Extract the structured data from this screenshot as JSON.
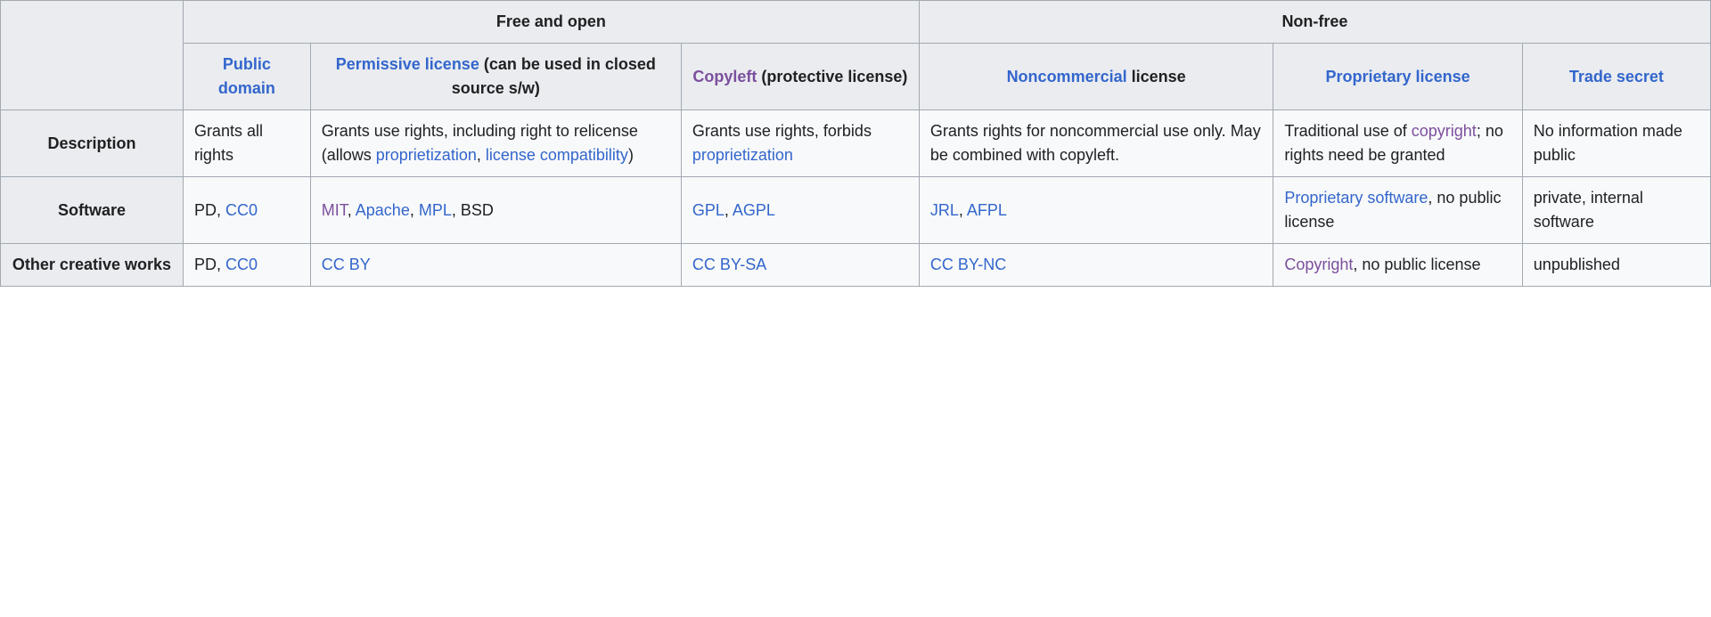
{
  "colors": {
    "link": "#3366cc",
    "link_visited": "#7b4f9d",
    "border": "#a2a9b1",
    "th_bg": "#eaecf0",
    "td_bg": "#f8f9fa",
    "text": "#202122"
  },
  "header_groups": {
    "free": "Free and open",
    "nonfree": "Non-free"
  },
  "columns": {
    "public_domain": {
      "link": "Public domain",
      "suffix": ""
    },
    "permissive": {
      "link": "Permissive license",
      "suffix": " (can be used in closed source s/w)"
    },
    "copyleft": {
      "link": "Copyleft",
      "suffix": " (protective license)"
    },
    "noncommercial": {
      "link": "Noncommercial",
      "suffix": " license"
    },
    "proprietary": {
      "link": "Proprietary license",
      "suffix": ""
    },
    "trade_secret": {
      "link": "Trade secret",
      "suffix": ""
    }
  },
  "rows": {
    "description": {
      "label": "Description",
      "public_domain": [
        {
          "t": "Grants all rights"
        }
      ],
      "permissive": [
        {
          "t": "Grants use rights, including right to relicense (allows "
        },
        {
          "t": "proprietization",
          "link": true
        },
        {
          "t": ", "
        },
        {
          "t": "license compatibility",
          "link": true
        },
        {
          "t": ")"
        }
      ],
      "copyleft": [
        {
          "t": "Grants use rights, forbids "
        },
        {
          "t": "proprietization",
          "link": true
        }
      ],
      "noncommercial": [
        {
          "t": "Grants rights for noncommercial use only. May be combined with copyleft."
        }
      ],
      "proprietary": [
        {
          "t": "Traditional use of "
        },
        {
          "t": "copyright",
          "link": true,
          "visited": true
        },
        {
          "t": "; no rights need be granted"
        }
      ],
      "trade_secret": [
        {
          "t": "No information made public"
        }
      ]
    },
    "software": {
      "label": "Software",
      "public_domain": [
        {
          "t": "PD, "
        },
        {
          "t": "CC0",
          "link": true
        }
      ],
      "permissive": [
        {
          "t": "MIT",
          "link": true,
          "visited": true
        },
        {
          "t": ", "
        },
        {
          "t": "Apache",
          "link": true
        },
        {
          "t": ", "
        },
        {
          "t": "MPL",
          "link": true
        },
        {
          "t": ", BSD"
        }
      ],
      "copyleft": [
        {
          "t": "GPL",
          "link": true
        },
        {
          "t": ", "
        },
        {
          "t": "AGPL",
          "link": true
        }
      ],
      "noncommercial": [
        {
          "t": "JRL",
          "link": true
        },
        {
          "t": ", "
        },
        {
          "t": "AFPL",
          "link": true
        }
      ],
      "proprietary": [
        {
          "t": "Proprietary software",
          "link": true
        },
        {
          "t": ", no public license"
        }
      ],
      "trade_secret": [
        {
          "t": "private, internal software"
        }
      ]
    },
    "other": {
      "label": "Other creative works",
      "public_domain": [
        {
          "t": "PD, "
        },
        {
          "t": "CC0",
          "link": true
        }
      ],
      "permissive": [
        {
          "t": "CC BY",
          "link": true
        }
      ],
      "copyleft": [
        {
          "t": "CC BY-SA",
          "link": true
        }
      ],
      "noncommercial": [
        {
          "t": "CC BY-NC",
          "link": true
        }
      ],
      "proprietary": [
        {
          "t": "Copyright",
          "link": true,
          "visited": true
        },
        {
          "t": ", no public license"
        }
      ],
      "trade_secret": [
        {
          "t": "unpublished"
        }
      ]
    }
  }
}
